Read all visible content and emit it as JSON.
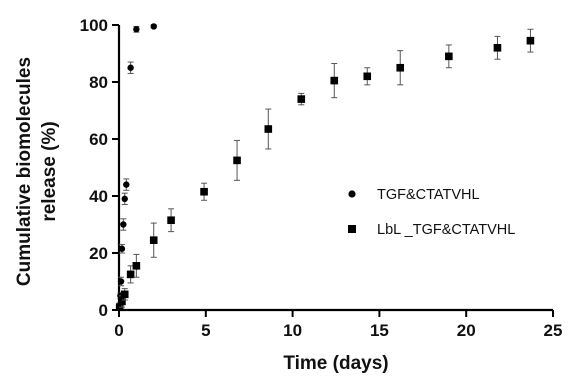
{
  "chart_data": {
    "type": "scatter",
    "xlabel": "Time (days)",
    "ylabel_lines": [
      "Cumulative biomolecules",
      "release (%)"
    ],
    "xlim": [
      0,
      25
    ],
    "ylim": [
      0,
      100
    ],
    "x_ticks": [
      0,
      5,
      10,
      15,
      20,
      25
    ],
    "y_ticks": [
      0,
      20,
      40,
      60,
      80,
      100
    ],
    "grid": false,
    "legend_position": "right-middle",
    "series": [
      {
        "name": "TGF&CTATVHL",
        "marker": "circle",
        "color": "#000000",
        "x": [
          0.04,
          0.08,
          0.12,
          0.17,
          0.25,
          0.33,
          0.42,
          0.67,
          1.0,
          2.0
        ],
        "y": [
          1.5,
          5,
          10,
          21.5,
          30,
          39,
          44,
          85,
          98.5,
          99.5
        ],
        "err": [
          1,
          1,
          1.5,
          1.5,
          2,
          2,
          2,
          2,
          1,
          0.5
        ]
      },
      {
        "name": "LbL _TGF&CTATVHL",
        "marker": "square",
        "color": "#000000",
        "x": [
          0.04,
          0.17,
          0.33,
          0.67,
          1.0,
          2.0,
          3.0,
          4.9,
          6.8,
          8.6,
          10.5,
          12.4,
          14.3,
          16.2,
          19.0,
          21.8,
          23.7
        ],
        "y": [
          1,
          3,
          5.5,
          12.5,
          15.5,
          24.5,
          31.5,
          41.5,
          52.5,
          63.5,
          74,
          80.5,
          82,
          85,
          89,
          92,
          94.5
        ],
        "err": [
          1,
          2,
          2,
          3,
          4,
          6,
          4,
          3,
          7,
          7,
          2,
          6,
          3,
          6,
          4,
          4,
          4
        ]
      }
    ]
  }
}
